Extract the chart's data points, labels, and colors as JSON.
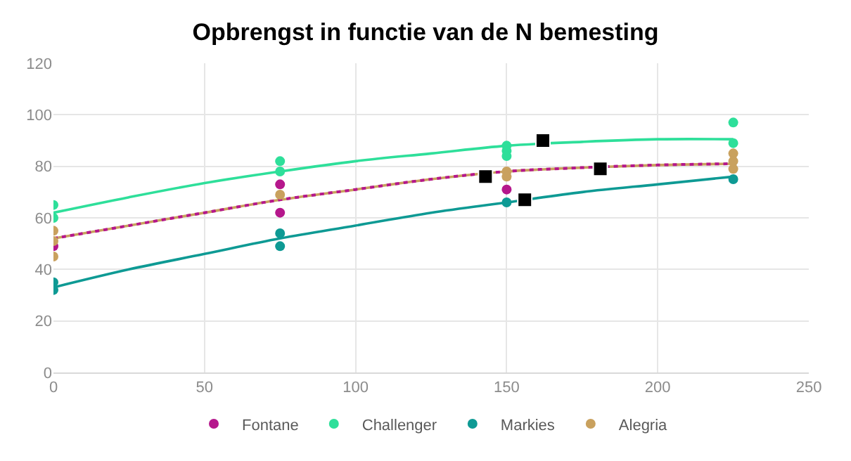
{
  "chart_data": {
    "type": "scatter",
    "title": "Opbrengst in functie van de N bemesting",
    "xlim": [
      0,
      250
    ],
    "xticks": [
      0,
      50,
      100,
      150,
      200,
      250
    ],
    "ylim": [
      0,
      120
    ],
    "yticks": [
      0,
      20,
      40,
      60,
      80,
      100,
      120
    ],
    "grid": true,
    "legend": "bottom",
    "marker": "circle",
    "series": [
      {
        "type": "line",
        "color": "#2edf9a",
        "x": [
          0,
          25,
          50,
          75,
          100,
          125,
          150,
          175,
          200,
          225
        ],
        "values": [
          62,
          68,
          73.5,
          78,
          82,
          85,
          88,
          89.5,
          90.5,
          90.5
        ],
        "marker": "none",
        "line_style": "solid"
      },
      {
        "type": "line",
        "color": "#c9a15e",
        "x": [
          0,
          25,
          50,
          75,
          100,
          125,
          150,
          175,
          200,
          225
        ],
        "values": [
          52,
          57,
          62,
          67,
          71,
          75,
          78,
          79.5,
          80.5,
          81
        ],
        "marker": "none",
        "line_style": "solid"
      },
      {
        "type": "line",
        "color": "#b5178c",
        "x": [
          0,
          25,
          50,
          75,
          100,
          125,
          150,
          175,
          200,
          225
        ],
        "values": [
          52,
          57,
          62,
          67,
          71,
          75,
          78,
          79.5,
          80.5,
          81
        ],
        "marker": "none",
        "line_style": "dotted"
      },
      {
        "type": "line",
        "color": "#0e9a94",
        "x": [
          0,
          25,
          50,
          75,
          100,
          125,
          150,
          175,
          200,
          225
        ],
        "values": [
          33,
          40,
          46,
          52,
          57,
          62,
          66,
          70,
          73,
          76
        ],
        "marker": "none",
        "line_style": "solid"
      },
      {
        "name": "Fontane",
        "color": "#b5178c",
        "x": [
          0,
          75,
          75,
          150
        ],
        "values": [
          49,
          73,
          62,
          71
        ]
      },
      {
        "name": "Challenger",
        "color": "#2edf9a",
        "x": [
          0,
          0,
          75,
          75,
          150,
          150,
          150,
          225,
          225
        ],
        "values": [
          65,
          60,
          82,
          78,
          88,
          86,
          84,
          97,
          89
        ]
      },
      {
        "name": "Markies",
        "color": "#0e9a94",
        "x": [
          0,
          0,
          75,
          75,
          150,
          225
        ],
        "values": [
          35,
          32,
          54,
          49,
          66,
          75
        ]
      },
      {
        "name": "Alegria",
        "color": "#c9a15e",
        "x": [
          0,
          0,
          0,
          75,
          150,
          150,
          225,
          225,
          225
        ],
        "values": [
          55,
          51,
          45,
          69,
          78,
          76,
          85,
          82,
          79
        ]
      },
      {
        "color": "#000000",
        "x": [
          143,
          162,
          156,
          181
        ],
        "values": [
          76,
          90,
          67,
          79
        ],
        "marker": "square"
      }
    ]
  }
}
